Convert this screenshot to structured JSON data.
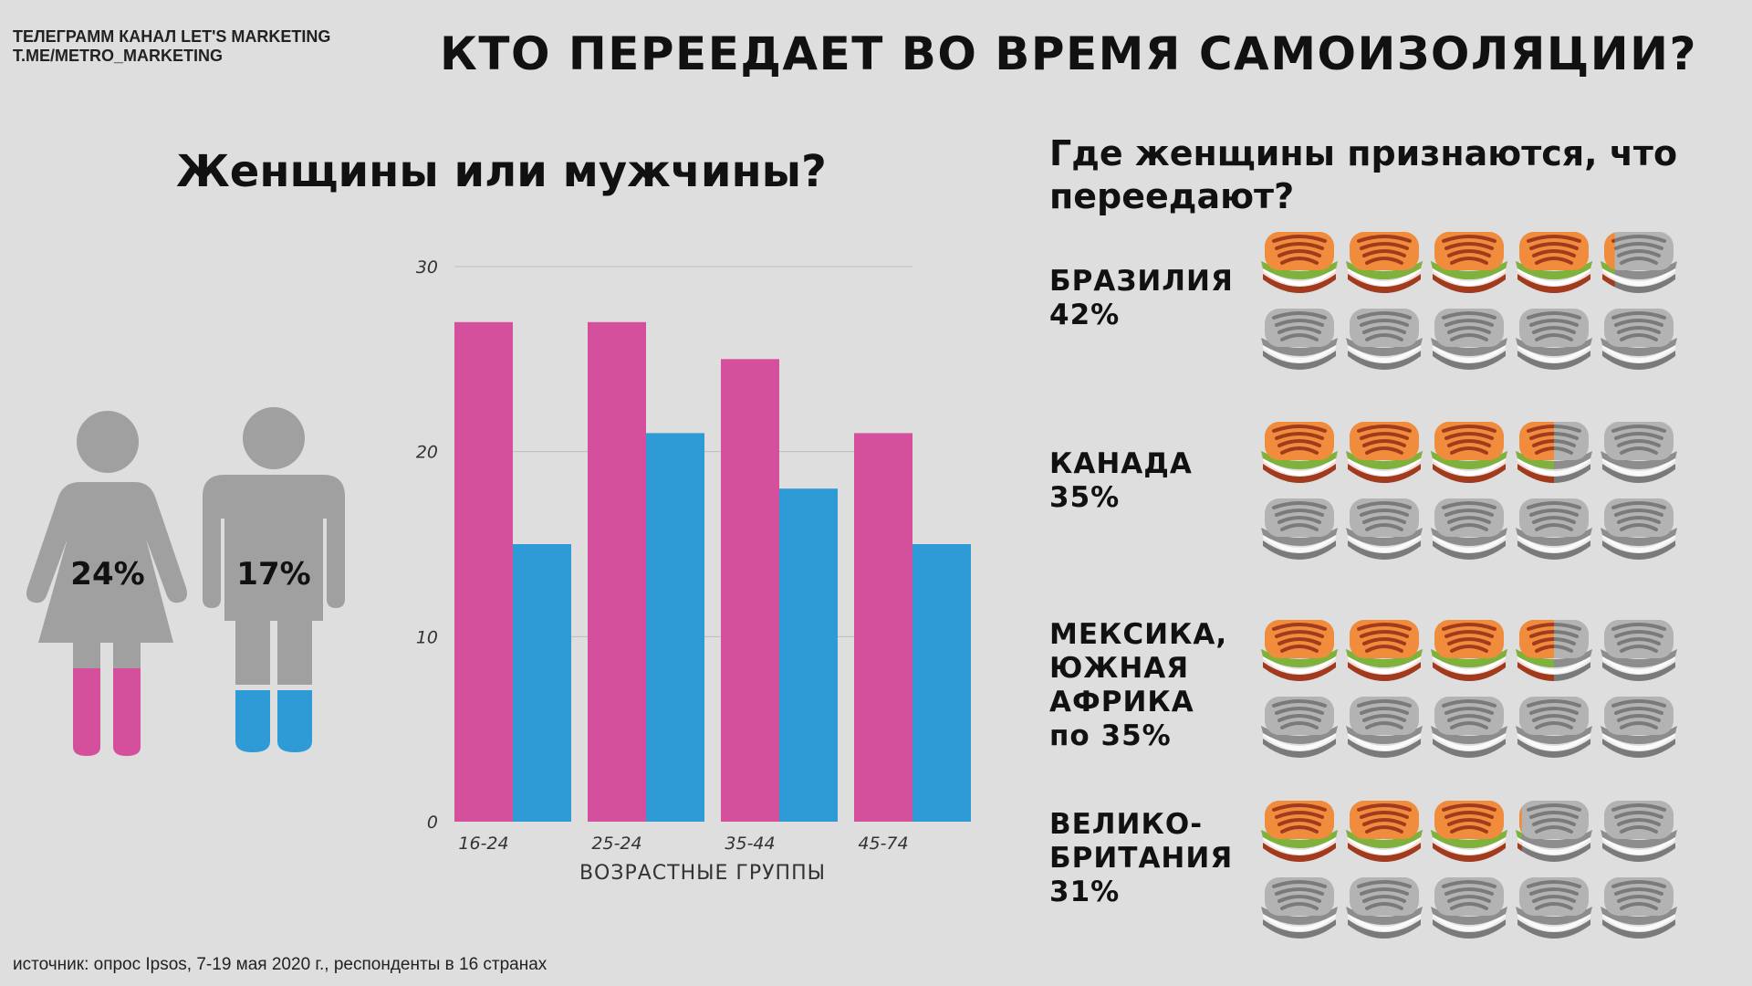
{
  "header": {
    "brand_line1": "ТЕЛЕГРАММ КАНАЛ LET'S MARKETING",
    "brand_line2": "T.ME/METRO_MARKETING",
    "title": "КТО ПЕРЕЕДАЕТ ВО ВРЕМЯ САМОИЗОЛЯЦИИ?"
  },
  "left": {
    "title": "Женщины или мужчины?",
    "woman_pct": "24%",
    "man_pct": "17%"
  },
  "colors": {
    "female": "#d44f9c",
    "male": "#2e9bd6",
    "figure": "#a0a0a0",
    "sandwich_on": "#f08c3c",
    "sandwich_off": "#b3b3b3"
  },
  "chart_data": {
    "type": "bar",
    "categories": [
      "16-24",
      "25-24",
      "35-44",
      "45-74"
    ],
    "series": [
      {
        "name": "Женщины",
        "values": [
          27,
          27,
          25,
          21
        ]
      },
      {
        "name": "Мужчины",
        "values": [
          15,
          21,
          18,
          15
        ]
      }
    ],
    "xlabel": "ВОЗРАСТНЫЕ ГРУППЫ",
    "ylabel": "",
    "ylim": [
      0,
      30
    ],
    "yticks": [
      0,
      10,
      20,
      30
    ],
    "grid": true
  },
  "right": {
    "title": "Где женщины признаются, что переедают?",
    "countries": [
      {
        "lines": [
          "БРАЗИЛИЯ"
        ],
        "pct": "42%",
        "value": 42
      },
      {
        "lines": [
          "КАНАДА"
        ],
        "pct": "35%",
        "value": 35
      },
      {
        "lines": [
          "МЕКСИКА,",
          "ЮЖНАЯ",
          "АФРИКА"
        ],
        "pct": "по 35%",
        "value": 35
      },
      {
        "lines": [
          "ВЕЛИКО-",
          "БРИТАНИЯ"
        ],
        "pct": "31%",
        "value": 31
      }
    ]
  },
  "footer": {
    "source": "источник: опрос Ipsos, 7-19 мая 2020 г., респонденты в 16 странах"
  }
}
